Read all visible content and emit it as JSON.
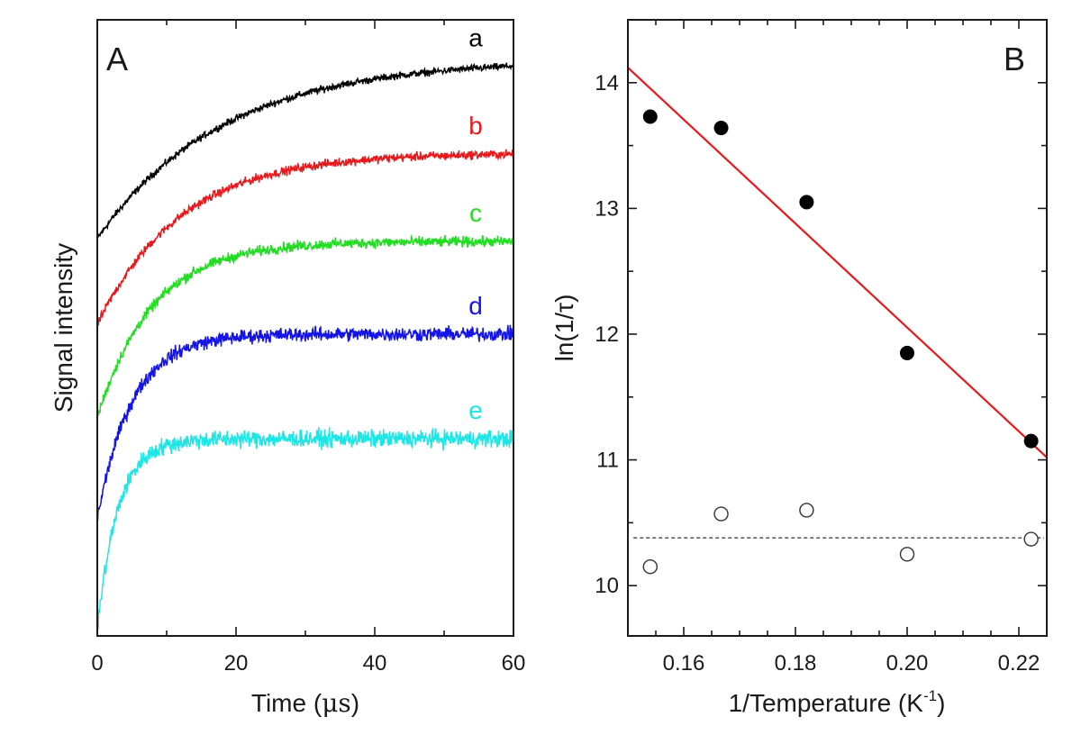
{
  "chart_data": [
    {
      "type": "line",
      "panel_label": "A",
      "xlabel_main": "Time (",
      "xlabel_unit": "μs",
      "xlabel_end": ")",
      "ylabel": "Signal intensity",
      "xlim": [
        0,
        60
      ],
      "ylim": [
        0,
        1
      ],
      "x_ticks": [
        "0",
        "20",
        "40",
        "60"
      ],
      "y_ticks": [],
      "series": [
        {
          "name": "a",
          "color": "#000000",
          "start": 0.645,
          "end": 0.925,
          "tau": 18,
          "noise": 0.004
        },
        {
          "name": "b",
          "color": "#e8191c",
          "start": 0.505,
          "end": 0.782,
          "tau": 12,
          "noise": 0.005
        },
        {
          "name": "c",
          "color": "#22dd22",
          "start": 0.355,
          "end": 0.64,
          "tau": 8,
          "noise": 0.006
        },
        {
          "name": "d",
          "color": "#1414e6",
          "start": 0.19,
          "end": 0.49,
          "tau": 5,
          "noise": 0.008
        },
        {
          "name": "e",
          "color": "#1ee6e6",
          "start": 0.01,
          "end": 0.32,
          "tau": 3,
          "noise": 0.01
        }
      ]
    },
    {
      "type": "scatter",
      "panel_label": "B",
      "xlabel_main": "1/Temperature (K",
      "xlabel_sup": "-1",
      "xlabel_end": ")",
      "ylabel": "ln(1/τ)",
      "xlim": [
        0.15,
        0.225
      ],
      "ylim": [
        9.6,
        14.5
      ],
      "x_ticks": [
        0.16,
        0.18,
        0.2,
        0.22
      ],
      "x_tick_labels": [
        "0.16",
        "0.18",
        "0.20",
        "0.22"
      ],
      "y_ticks": [
        10,
        11,
        12,
        13,
        14
      ],
      "y_tick_labels": [
        "10",
        "11",
        "12",
        "13",
        "14"
      ],
      "filled_points": {
        "x": [
          0.154,
          0.1667,
          0.182,
          0.2,
          0.2222
        ],
        "y": [
          13.73,
          13.64,
          13.05,
          11.85,
          11.15
        ]
      },
      "open_points": {
        "x": [
          0.154,
          0.1667,
          0.182,
          0.2,
          0.2222
        ],
        "y": [
          10.15,
          10.57,
          10.6,
          10.25,
          10.37
        ]
      },
      "fit_line": {
        "color": "#e8191c",
        "x": [
          0.15,
          0.225
        ],
        "y": [
          14.12,
          11.02
        ]
      },
      "dashed_line": {
        "y": 10.38
      }
    }
  ]
}
